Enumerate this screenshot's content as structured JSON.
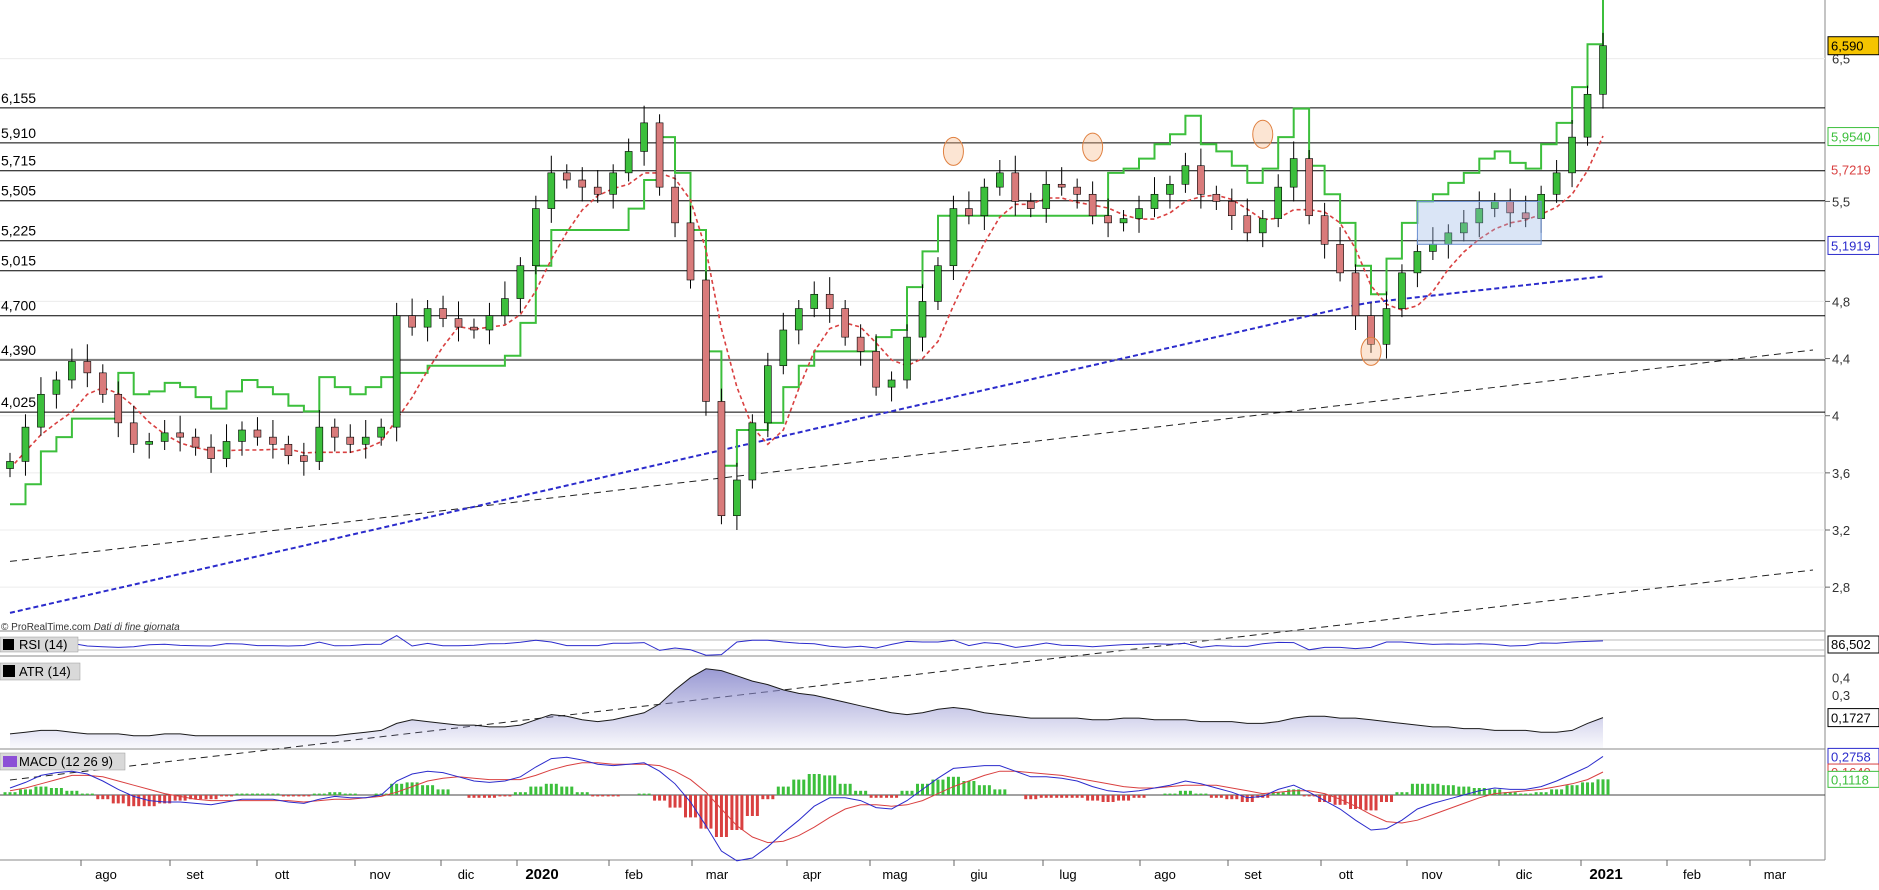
{
  "chart_data": [
    {
      "type": "candlestick",
      "panel": "price",
      "watermark": "© ProRealTime.com",
      "watermark_note": "Dati di fine giornata",
      "ylim": [
        2.5,
        6.7
      ],
      "y_ticks": [
        "2,8",
        "3,2",
        "3,6",
        "4",
        "4,4",
        "4,8",
        "5,5"
      ],
      "y_tick_values": [
        2.8,
        3.2,
        3.6,
        4.0,
        4.4,
        4.8,
        5.5
      ],
      "y_tick_top": "6,5",
      "x_months": [
        "ago",
        "set",
        "ott",
        "nov",
        "dic",
        "2020",
        "feb",
        "mar",
        "apr",
        "mag",
        "giu",
        "lug",
        "ago",
        "set",
        "ott",
        "nov",
        "dic",
        "2021",
        "feb",
        "mar"
      ],
      "x_bold": [
        "2020",
        "2021"
      ],
      "levels": [
        {
          "label": "6,155",
          "value": 6.155
        },
        {
          "label": "5,910",
          "value": 5.91
        },
        {
          "label": "5,715",
          "value": 5.715
        },
        {
          "label": "5,505",
          "value": 5.505
        },
        {
          "label": "5,225",
          "value": 5.225
        },
        {
          "label": "5,015",
          "value": 5.015
        },
        {
          "label": "4,700",
          "value": 4.7
        },
        {
          "label": "4,390",
          "value": 4.39
        },
        {
          "label": "4,025",
          "value": 4.025
        }
      ],
      "closes": [
        3.68,
        3.92,
        4.15,
        4.25,
        4.38,
        4.3,
        4.15,
        3.95,
        3.8,
        3.82,
        3.88,
        3.85,
        3.78,
        3.7,
        3.82,
        3.9,
        3.85,
        3.8,
        3.72,
        3.68,
        3.92,
        3.85,
        3.8,
        3.85,
        3.92,
        4.7,
        4.62,
        4.75,
        4.68,
        4.62,
        4.6,
        4.7,
        4.82,
        5.05,
        5.45,
        5.7,
        5.65,
        5.6,
        5.55,
        5.7,
        5.85,
        6.05,
        5.6,
        5.35,
        4.95,
        4.1,
        3.3,
        3.55,
        3.95,
        4.35,
        4.6,
        4.75,
        4.85,
        4.75,
        4.55,
        4.45,
        4.2,
        4.25,
        4.55,
        4.8,
        5.05,
        5.45,
        5.4,
        5.6,
        5.7,
        5.5,
        5.45,
        5.62,
        5.6,
        5.55,
        5.4,
        5.35,
        5.38,
        5.45,
        5.55,
        5.62,
        5.75,
        5.55,
        5.5,
        5.4,
        5.28,
        5.38,
        5.6,
        5.8,
        5.4,
        5.2,
        5.0,
        4.7,
        4.5,
        4.75,
        5.0,
        5.15,
        5.2,
        5.28,
        5.35,
        5.45,
        5.5,
        5.42,
        5.38,
        5.55,
        5.7,
        5.95,
        6.25,
        6.59
      ],
      "moving_average_200": {
        "last": 5.1919,
        "label": "5,1919",
        "color": "#2b2bcc"
      },
      "moving_average_20": {
        "last": 5.7219,
        "label": "5,7219",
        "color": "#d94040"
      },
      "trailing_stop": {
        "last": 5.954,
        "label": "5,9540",
        "color": "#3cbf3c"
      },
      "last_price": {
        "value": 6.59,
        "label": "6,590",
        "color": "#f5c400"
      },
      "trendlines": [
        {
          "from": [
            0,
            2.98
          ],
          "to": [
            103,
            4.4
          ]
        },
        {
          "from": [
            0,
            1.45
          ],
          "to": [
            103,
            2.86
          ]
        }
      ],
      "colors": {
        "up": "#3cbf3c",
        "down": "#d97b7b",
        "wick": "#000000"
      }
    },
    {
      "type": "line",
      "panel": "rsi",
      "title": "RSI (14)",
      "last": {
        "value": 86.502,
        "label": "86,502"
      }
    },
    {
      "type": "area",
      "panel": "atr",
      "title": "ATR (14)",
      "ylim": [
        0,
        0.5
      ],
      "y_ticks": [
        "0,3",
        "0,4"
      ],
      "y_tick_values": [
        0.3,
        0.4
      ],
      "values": [
        0.08,
        0.09,
        0.1,
        0.1,
        0.09,
        0.08,
        0.08,
        0.08,
        0.07,
        0.07,
        0.08,
        0.08,
        0.07,
        0.07,
        0.07,
        0.07,
        0.07,
        0.07,
        0.07,
        0.07,
        0.07,
        0.07,
        0.08,
        0.09,
        0.1,
        0.14,
        0.16,
        0.15,
        0.14,
        0.13,
        0.13,
        0.12,
        0.12,
        0.13,
        0.16,
        0.19,
        0.18,
        0.16,
        0.15,
        0.16,
        0.18,
        0.2,
        0.25,
        0.33,
        0.4,
        0.45,
        0.44,
        0.41,
        0.38,
        0.36,
        0.33,
        0.31,
        0.3,
        0.28,
        0.26,
        0.24,
        0.22,
        0.2,
        0.19,
        0.2,
        0.22,
        0.23,
        0.22,
        0.2,
        0.19,
        0.18,
        0.17,
        0.17,
        0.17,
        0.17,
        0.16,
        0.16,
        0.17,
        0.17,
        0.16,
        0.16,
        0.16,
        0.15,
        0.15,
        0.15,
        0.14,
        0.14,
        0.15,
        0.17,
        0.18,
        0.18,
        0.17,
        0.17,
        0.16,
        0.15,
        0.14,
        0.13,
        0.12,
        0.12,
        0.11,
        0.11,
        0.1,
        0.1,
        0.1,
        0.09,
        0.09,
        0.1,
        0.14,
        0.1727
      ],
      "last": {
        "value": 0.1727,
        "label": "0,1727"
      },
      "colors": {
        "line": "#1a1a1a",
        "fill": "#8888cc"
      }
    },
    {
      "type": "bar+line",
      "panel": "macd",
      "title": "MACD (12 26 9)",
      "macd": [
        0.05,
        0.09,
        0.14,
        0.16,
        0.17,
        0.15,
        0.1,
        0.04,
        -0.01,
        -0.04,
        -0.05,
        -0.05,
        -0.06,
        -0.07,
        -0.05,
        -0.03,
        -0.03,
        -0.03,
        -0.05,
        -0.06,
        -0.03,
        -0.01,
        -0.02,
        -0.02,
        0.0,
        0.1,
        0.15,
        0.17,
        0.16,
        0.13,
        0.1,
        0.09,
        0.1,
        0.13,
        0.2,
        0.26,
        0.27,
        0.25,
        0.22,
        0.21,
        0.22,
        0.23,
        0.17,
        0.08,
        -0.05,
        -0.22,
        -0.4,
        -0.47,
        -0.45,
        -0.37,
        -0.27,
        -0.18,
        -0.08,
        -0.02,
        -0.02,
        -0.04,
        -0.09,
        -0.1,
        -0.04,
        0.04,
        0.12,
        0.19,
        0.2,
        0.21,
        0.21,
        0.17,
        0.13,
        0.13,
        0.12,
        0.1,
        0.06,
        0.03,
        0.02,
        0.03,
        0.05,
        0.07,
        0.1,
        0.08,
        0.05,
        0.02,
        -0.02,
        -0.01,
        0.04,
        0.07,
        0.02,
        -0.04,
        -0.1,
        -0.18,
        -0.25,
        -0.24,
        -0.18,
        -0.1,
        -0.06,
        -0.03,
        0.0,
        0.03,
        0.05,
        0.04,
        0.04,
        0.06,
        0.1,
        0.15,
        0.2,
        0.2758
      ],
      "signal": [
        0.03,
        0.05,
        0.08,
        0.11,
        0.14,
        0.14,
        0.13,
        0.1,
        0.07,
        0.04,
        0.01,
        -0.01,
        -0.03,
        -0.04,
        -0.04,
        -0.04,
        -0.04,
        -0.04,
        -0.04,
        -0.05,
        -0.04,
        -0.03,
        -0.03,
        -0.02,
        -0.01,
        0.02,
        0.06,
        0.1,
        0.12,
        0.13,
        0.12,
        0.11,
        0.11,
        0.11,
        0.14,
        0.18,
        0.21,
        0.23,
        0.23,
        0.22,
        0.22,
        0.22,
        0.21,
        0.17,
        0.11,
        0.02,
        -0.1,
        -0.22,
        -0.3,
        -0.34,
        -0.33,
        -0.29,
        -0.23,
        -0.16,
        -0.1,
        -0.07,
        -0.07,
        -0.08,
        -0.07,
        -0.04,
        0.01,
        0.06,
        0.1,
        0.14,
        0.17,
        0.17,
        0.16,
        0.15,
        0.14,
        0.12,
        0.1,
        0.08,
        0.06,
        0.05,
        0.05,
        0.06,
        0.07,
        0.07,
        0.07,
        0.05,
        0.03,
        0.01,
        0.02,
        0.03,
        0.03,
        0.01,
        -0.03,
        -0.08,
        -0.14,
        -0.19,
        -0.2,
        -0.18,
        -0.14,
        -0.1,
        -0.06,
        -0.02,
        0.01,
        0.02,
        0.03,
        0.04,
        0.06,
        0.08,
        0.11,
        0.164
      ],
      "histogram_last": {
        "value": 0.1118,
        "label": "0,1118"
      },
      "macd_last": {
        "value": 0.2758,
        "label": "0,2758"
      },
      "signal_last": {
        "value": 0.164,
        "label": "0,1640"
      },
      "colors": {
        "macd": "#2b2bcc",
        "signal": "#d94040",
        "hist_pos": "#3cbf3c",
        "hist_neg": "#d94040"
      }
    }
  ]
}
